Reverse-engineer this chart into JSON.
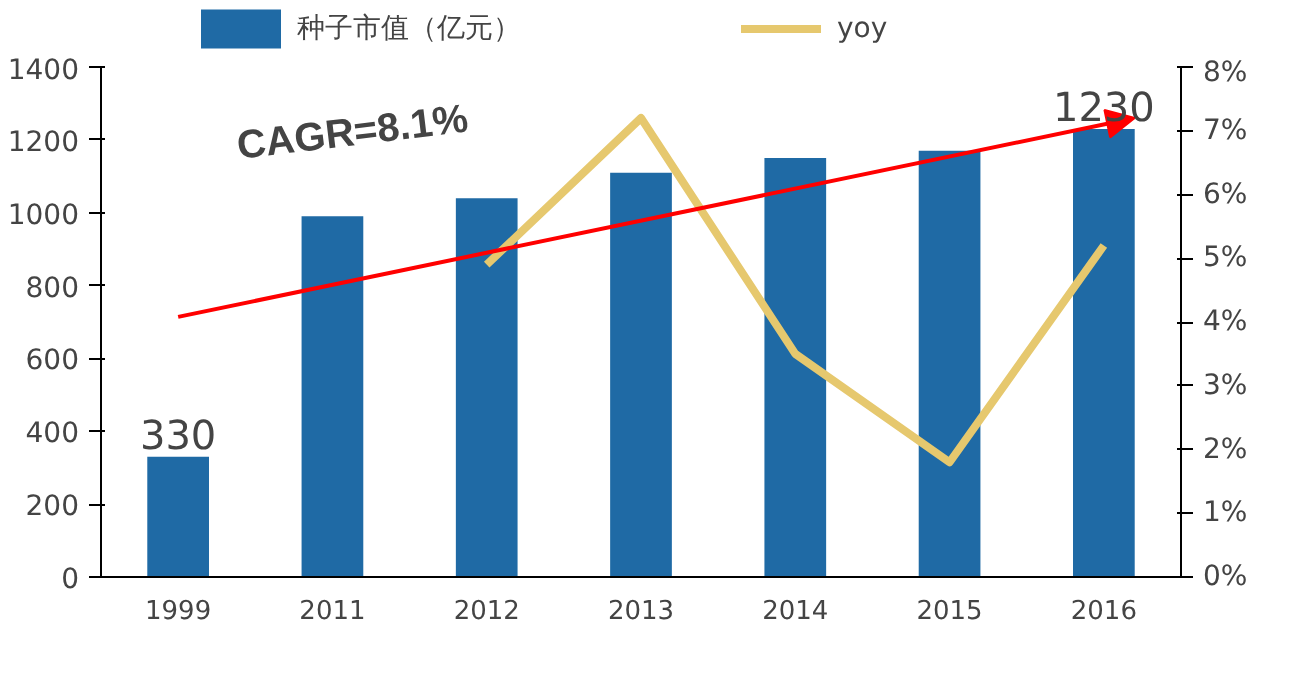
{
  "chart_data": {
    "type": "bar",
    "categories": [
      "1999",
      "2011",
      "2012",
      "2013",
      "2014",
      "2015",
      "2016"
    ],
    "series": [
      {
        "name": "种子市值（亿元）",
        "color": "#1f6aa5",
        "values": [
          330,
          990,
          1040,
          1110,
          1150,
          1170,
          1230
        ]
      },
      {
        "name": "yoy",
        "type": "line",
        "axis": "y2",
        "color": "#e6c86e",
        "values": [
          null,
          null,
          4.9,
          7.2,
          3.5,
          1.8,
          5.2
        ]
      }
    ],
    "ylim": [
      0,
      1400
    ],
    "yticks": [
      0,
      200,
      400,
      600,
      800,
      1000,
      1200,
      1400
    ],
    "y2lim": [
      0,
      8
    ],
    "y2ticks": [
      {
        "value": 0,
        "label": "0%"
      },
      {
        "value": 1,
        "label": "1%"
      },
      {
        "value": 2,
        "label": "2%"
      },
      {
        "value": 3,
        "label": "3%"
      },
      {
        "value": 4,
        "label": "4%"
      },
      {
        "value": 5,
        "label": "5%"
      },
      {
        "value": 6,
        "label": "6%"
      },
      {
        "value": 7,
        "label": "7%"
      },
      {
        "value": 8,
        "label": "8%"
      }
    ],
    "annotations": [
      {
        "text": "330",
        "x": "1999",
        "y": 330
      },
      {
        "text": "1230",
        "x": "2016",
        "y": 1230
      },
      "CAGR=8.1%"
    ],
    "grid": false,
    "legend": "top"
  }
}
